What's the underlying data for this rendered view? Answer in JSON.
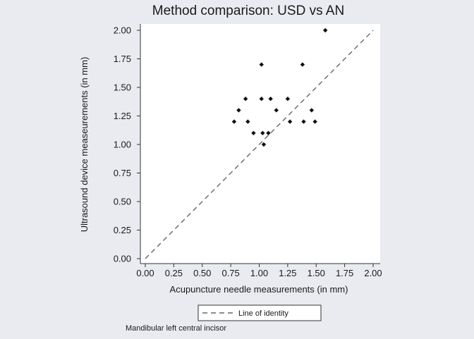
{
  "chart_data": {
    "type": "scatter",
    "title": "Method comparison: USD vs AN",
    "xlabel": "Acupuncture needle measurements (in mm)",
    "ylabel": "Ultrasound device measeurements (in mm)",
    "xlim": [
      0,
      2
    ],
    "ylim": [
      0,
      2
    ],
    "x_ticks": [
      "0.00",
      "0.25",
      "0.50",
      "0.75",
      "1.00",
      "1.25",
      "1.50",
      "1.75",
      "2.00"
    ],
    "y_ticks": [
      "0.00",
      "0.25",
      "0.50",
      "0.75",
      "1.00",
      "1.25",
      "1.50",
      "1.75",
      "2.00"
    ],
    "points": [
      {
        "x": 0.78,
        "y": 1.2
      },
      {
        "x": 0.82,
        "y": 1.3
      },
      {
        "x": 0.88,
        "y": 1.4
      },
      {
        "x": 0.9,
        "y": 1.2
      },
      {
        "x": 0.95,
        "y": 1.1
      },
      {
        "x": 1.02,
        "y": 1.7
      },
      {
        "x": 1.02,
        "y": 1.4
      },
      {
        "x": 1.03,
        "y": 1.1
      },
      {
        "x": 1.04,
        "y": 1.0
      },
      {
        "x": 1.08,
        "y": 1.1
      },
      {
        "x": 1.1,
        "y": 1.4
      },
      {
        "x": 1.15,
        "y": 1.3
      },
      {
        "x": 1.25,
        "y": 1.4
      },
      {
        "x": 1.27,
        "y": 1.2
      },
      {
        "x": 1.38,
        "y": 1.7
      },
      {
        "x": 1.39,
        "y": 1.2
      },
      {
        "x": 1.46,
        "y": 1.3
      },
      {
        "x": 1.49,
        "y": 1.2
      },
      {
        "x": 1.58,
        "y": 2.0
      }
    ],
    "reference_line": {
      "name": "Line of identity",
      "from": [
        0,
        0
      ],
      "to": [
        2,
        2
      ],
      "style": "dashed"
    },
    "legend_entries": [
      "Line of identity"
    ],
    "legend_position": "bottom",
    "grid": false,
    "colors": {
      "points": "#111111",
      "line": "#666666",
      "background": "#e9ebf0",
      "plot_background": "#ffffff"
    }
  },
  "note": "Mandibular left central incisor"
}
